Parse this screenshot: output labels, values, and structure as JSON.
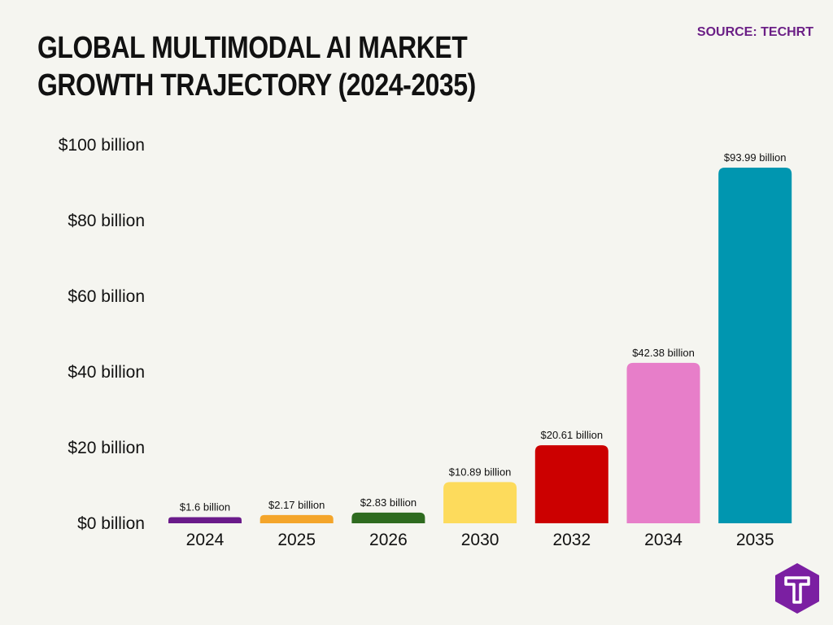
{
  "header": {
    "title": "GLOBAL MULTIMODAL AI MARKET GROWTH TRAJECTORY (2024-2035)",
    "source": "SOURCE: TECHRT"
  },
  "logo": {
    "icon": "techrt-t-logo-icon",
    "color": "#7b1fa2"
  },
  "chart_data": {
    "type": "bar",
    "categories": [
      "2024",
      "2025",
      "2026",
      "2030",
      "2032",
      "2034",
      "2035"
    ],
    "values": [
      1.6,
      2.17,
      2.83,
      10.89,
      20.61,
      42.38,
      93.99
    ],
    "data_labels": [
      "$1.6 billion",
      "$2.17 billion",
      "$2.83 billion",
      "$10.89 billion",
      "$20.61 billion",
      "$42.38 billion",
      "$93.99 billion"
    ],
    "colors": [
      "#6a1b8a",
      "#f4a52a",
      "#2e6b1f",
      "#fddb5c",
      "#cc0000",
      "#e77ec9",
      "#0096b0"
    ],
    "yticks": [
      0,
      20,
      40,
      60,
      80,
      100
    ],
    "ytick_labels": [
      "$0 billion",
      "$20 billion",
      "$40 billion",
      "$60 billion",
      "$80 billion",
      "$100 billion"
    ],
    "ylim": [
      0,
      100
    ],
    "grid": false,
    "legend": false
  }
}
